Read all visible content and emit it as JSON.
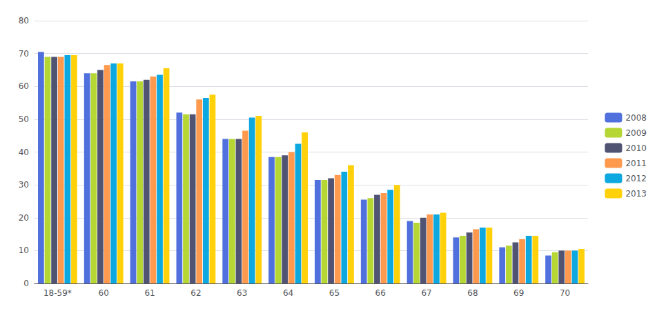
{
  "chart_data": {
    "type": "bar",
    "categories": [
      "18-59*",
      "60",
      "61",
      "62",
      "63",
      "64",
      "65",
      "66",
      "67",
      "68",
      "69",
      "70"
    ],
    "series": [
      {
        "name": "2008",
        "values": [
          70.5,
          64.0,
          61.5,
          52.0,
          44.0,
          38.5,
          31.5,
          25.5,
          19.0,
          14.0,
          11.0,
          8.5
        ]
      },
      {
        "name": "2009",
        "values": [
          69.0,
          64.0,
          61.5,
          51.5,
          44.0,
          38.5,
          31.5,
          26.0,
          18.5,
          14.5,
          11.5,
          9.5
        ]
      },
      {
        "name": "2010",
        "values": [
          69.0,
          65.0,
          62.0,
          51.5,
          44.0,
          39.0,
          32.0,
          27.0,
          20.0,
          15.5,
          12.5,
          10.0
        ]
      },
      {
        "name": "2011",
        "values": [
          69.0,
          66.5,
          63.0,
          56.0,
          46.5,
          40.0,
          33.0,
          27.5,
          21.0,
          16.5,
          13.5,
          10.0
        ]
      },
      {
        "name": "2012",
        "values": [
          69.5,
          67.0,
          63.5,
          56.5,
          50.5,
          42.5,
          34.0,
          28.5,
          21.0,
          17.0,
          14.5,
          10.0
        ]
      },
      {
        "name": "2013",
        "values": [
          69.5,
          67.0,
          65.5,
          57.5,
          51.0,
          46.0,
          36.0,
          30.0,
          21.5,
          17.0,
          14.5,
          10.5
        ]
      }
    ],
    "ylim": [
      0,
      80
    ],
    "yticks": [
      0,
      10,
      20,
      30,
      40,
      50,
      60,
      70,
      80
    ],
    "grid": true,
    "legend": "right"
  }
}
